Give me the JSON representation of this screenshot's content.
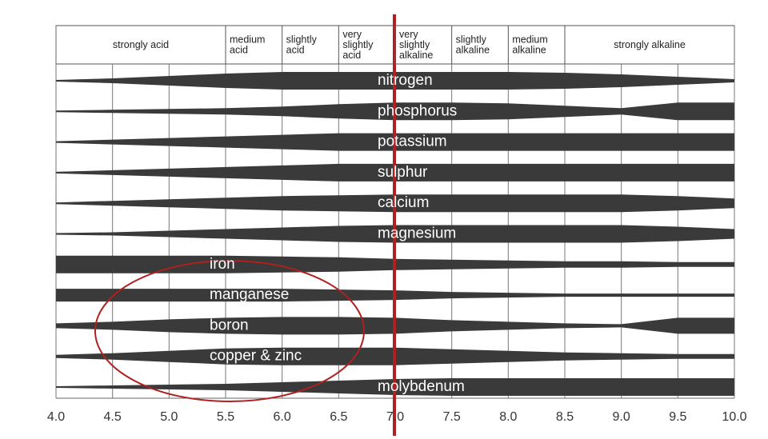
{
  "header": [
    [
      "strongly acid"
    ],
    [
      "medium",
      "acid"
    ],
    [
      "slightly",
      "acid"
    ],
    [
      "very",
      "slightly",
      "acid"
    ],
    [
      "very",
      "slightly",
      "alkaline"
    ],
    [
      "slightly",
      "alkaline"
    ],
    [
      "medium",
      "alkaline"
    ],
    [
      "strongly alkaline"
    ]
  ],
  "nutrients": [
    "nitrogen",
    "phosphorus",
    "potassium",
    "sulphur",
    "calcium",
    "magnesium",
    "iron",
    "manganese",
    "boron",
    "copper & zinc",
    "molybdenum"
  ],
  "xlim": [
    4,
    10
  ],
  "xticks": [
    {
      "value": 4,
      "label": "4.0"
    },
    {
      "value": 4.5,
      "label": "4.5"
    },
    {
      "value": 5,
      "label": "5.0"
    },
    {
      "value": 5.5,
      "label": "5.5"
    },
    {
      "value": 6,
      "label": "6.0"
    },
    {
      "value": 6.5,
      "label": "6.5"
    },
    {
      "value": 7,
      "label": "7.0"
    },
    {
      "value": 7.5,
      "label": "7.5"
    },
    {
      "value": 8,
      "label": "8.0"
    },
    {
      "value": 8.5,
      "label": "8.5"
    },
    {
      "value": 9,
      "label": "9.0"
    },
    {
      "value": 9.5,
      "label": "9.5"
    },
    {
      "value": 10,
      "label": "10.0"
    }
  ]
}
